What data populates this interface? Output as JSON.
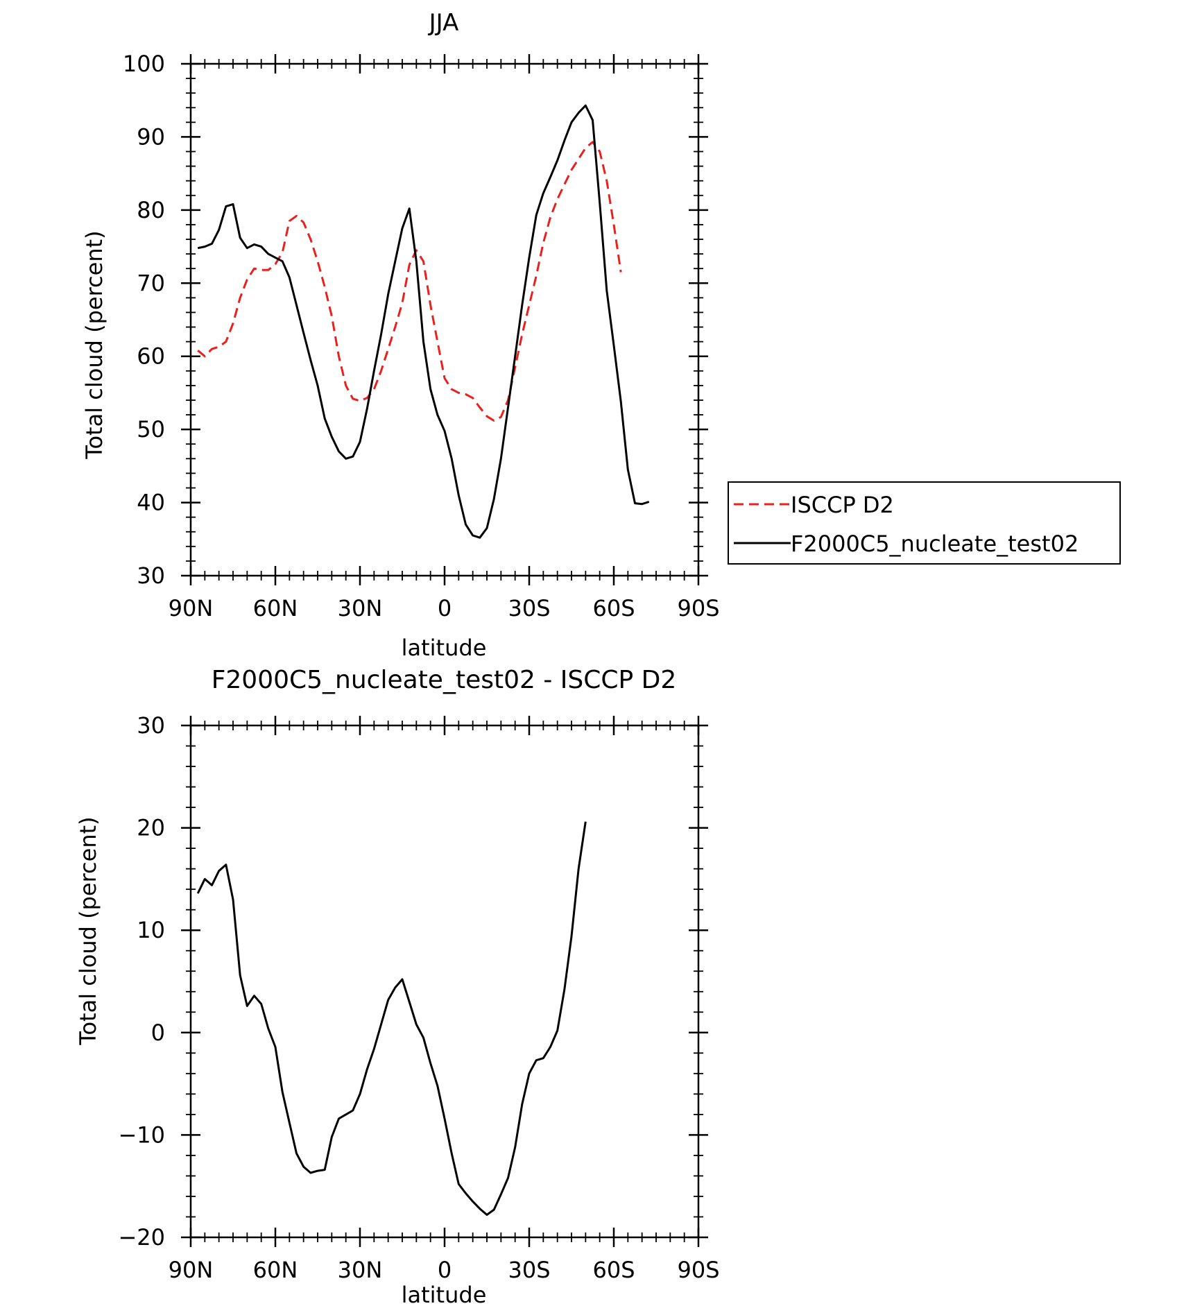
{
  "chart_data": [
    {
      "type": "line",
      "title": "JJA",
      "xlabel": "latitude",
      "ylabel": "Total cloud (percent)",
      "xlim": [
        90,
        -90
      ],
      "ylim": [
        30,
        100
      ],
      "x_ticks": [
        {
          "value": 90,
          "label": "90N"
        },
        {
          "value": 60,
          "label": "60N"
        },
        {
          "value": 30,
          "label": "30N"
        },
        {
          "value": 0,
          "label": "0"
        },
        {
          "value": -30,
          "label": "30S"
        },
        {
          "value": -60,
          "label": "60S"
        },
        {
          "value": -90,
          "label": "90S"
        }
      ],
      "y_ticks": [
        30,
        40,
        50,
        60,
        70,
        80,
        90,
        100
      ],
      "legend_position": "right",
      "series": [
        {
          "name": "ISCCP D2",
          "color": "#e8201e",
          "dash": "dashed",
          "points": [
            [
              87.5,
              60.8
            ],
            [
              85,
              60
            ],
            [
              82.5,
              61
            ],
            [
              80,
              61.3
            ],
            [
              77.5,
              62
            ],
            [
              75,
              64.5
            ],
            [
              72.5,
              68
            ],
            [
              70,
              70.5
            ],
            [
              67.5,
              72
            ],
            [
              65,
              71.8
            ],
            [
              62.5,
              71.8
            ],
            [
              60,
              72.6
            ],
            [
              57.5,
              74.2
            ],
            [
              55,
              78.5
            ],
            [
              52.5,
              79.2
            ],
            [
              50,
              78.3
            ],
            [
              47.5,
              76
            ],
            [
              45,
              73
            ],
            [
              42.5,
              69.5
            ],
            [
              40,
              65.5
            ],
            [
              37.5,
              60
            ],
            [
              35,
              56
            ],
            [
              32.5,
              54.2
            ],
            [
              30,
              53.9
            ],
            [
              27.5,
              54.3
            ],
            [
              25,
              55.5
            ],
            [
              22.5,
              58
            ],
            [
              20,
              61
            ],
            [
              17.5,
              64
            ],
            [
              15,
              67.3
            ],
            [
              12.5,
              72.5
            ],
            [
              10,
              74.5
            ],
            [
              7.5,
              73
            ],
            [
              5,
              67
            ],
            [
              2.5,
              62
            ],
            [
              0,
              57
            ],
            [
              -2.5,
              55.5
            ],
            [
              -5,
              55
            ],
            [
              -7.5,
              54.8
            ],
            [
              -10,
              54.3
            ],
            [
              -12.5,
              53
            ],
            [
              -15,
              51.8
            ],
            [
              -17.5,
              51.2
            ],
            [
              -20,
              51.7
            ],
            [
              -22.5,
              54
            ],
            [
              -25,
              58.5
            ],
            [
              -27.5,
              63
            ],
            [
              -30,
              67
            ],
            [
              -32.5,
              71
            ],
            [
              -35,
              75.5
            ],
            [
              -37.5,
              79
            ],
            [
              -40,
              81.5
            ],
            [
              -42.5,
              83.5
            ],
            [
              -45,
              85.5
            ],
            [
              -47.5,
              87
            ],
            [
              -50,
              88.5
            ],
            [
              -52.5,
              89.3
            ],
            [
              -55,
              88
            ],
            [
              -57.5,
              84
            ],
            [
              -60,
              78
            ],
            [
              -62.5,
              71.5
            ]
          ]
        },
        {
          "name": "F2000C5_nucleate_test02",
          "color": "#000000",
          "dash": "solid",
          "points": [
            [
              87.5,
              74.8
            ],
            [
              85,
              75
            ],
            [
              82.5,
              75.4
            ],
            [
              80,
              77.3
            ],
            [
              77.5,
              80.5
            ],
            [
              75,
              80.8
            ],
            [
              72.5,
              76.2
            ],
            [
              70,
              74.8
            ],
            [
              67.5,
              75.3
            ],
            [
              65,
              75
            ],
            [
              62.5,
              74
            ],
            [
              60,
              73.5
            ],
            [
              57.5,
              73
            ],
            [
              55,
              70.8
            ],
            [
              52.5,
              67
            ],
            [
              50,
              63.2
            ],
            [
              47.5,
              59.5
            ],
            [
              45,
              56
            ],
            [
              42.5,
              51.5
            ],
            [
              40,
              49
            ],
            [
              37.5,
              47
            ],
            [
              35,
              46
            ],
            [
              32.5,
              46.3
            ],
            [
              30,
              48.3
            ],
            [
              27.5,
              52.8
            ],
            [
              25,
              58
            ],
            [
              22.5,
              63
            ],
            [
              20,
              68.5
            ],
            [
              17.5,
              73
            ],
            [
              15,
              77.5
            ],
            [
              12.5,
              80.2
            ],
            [
              10,
              73
            ],
            [
              7.5,
              62
            ],
            [
              5,
              55.5
            ],
            [
              2.5,
              52
            ],
            [
              0,
              49.8
            ],
            [
              -2.5,
              46
            ],
            [
              -5,
              41
            ],
            [
              -7.5,
              37
            ],
            [
              -10,
              35.5
            ],
            [
              -12.5,
              35.2
            ],
            [
              -15,
              36.5
            ],
            [
              -17.5,
              40.5
            ],
            [
              -20,
              46
            ],
            [
              -22.5,
              53
            ],
            [
              -25,
              60
            ],
            [
              -27.5,
              67
            ],
            [
              -30,
              73.5
            ],
            [
              -32.5,
              79.3
            ],
            [
              -35,
              82.3
            ],
            [
              -37.5,
              84.5
            ],
            [
              -40,
              86.8
            ],
            [
              -42.5,
              89.5
            ],
            [
              -45,
              92
            ],
            [
              -47.5,
              93.3
            ],
            [
              -50,
              94.3
            ],
            [
              -52.5,
              92.3
            ],
            [
              -55,
              81
            ],
            [
              -57.5,
              69
            ],
            [
              -60,
              61.5
            ],
            [
              -62.5,
              53.8
            ],
            [
              -65,
              44.5
            ],
            [
              -67.5,
              39.9
            ],
            [
              -70,
              39.8
            ],
            [
              -72.5,
              40.1
            ]
          ]
        }
      ]
    },
    {
      "type": "line",
      "title": "F2000C5_nucleate_test02 - ISCCP D2",
      "xlabel": "latitude",
      "ylabel": "Total cloud (percent)",
      "xlim": [
        90,
        -90
      ],
      "ylim": [
        -20,
        30
      ],
      "x_ticks": [
        {
          "value": 90,
          "label": "90N"
        },
        {
          "value": 60,
          "label": "60N"
        },
        {
          "value": 30,
          "label": "30N"
        },
        {
          "value": 0,
          "label": "0"
        },
        {
          "value": -30,
          "label": "30S"
        },
        {
          "value": -60,
          "label": "60S"
        },
        {
          "value": -90,
          "label": "90S"
        }
      ],
      "y_ticks": [
        {
          "value": -20,
          "label": "−20"
        },
        {
          "value": -10,
          "label": "−10"
        },
        {
          "value": 0,
          "label": "0"
        },
        {
          "value": 10,
          "label": "10"
        },
        {
          "value": 20,
          "label": "20"
        },
        {
          "value": 30,
          "label": "30"
        }
      ],
      "series": [
        {
          "color": "#000000",
          "dash": "solid",
          "points": [
            [
              87.5,
              13.6
            ],
            [
              85,
              15
            ],
            [
              82.5,
              14.4
            ],
            [
              80,
              15.8
            ],
            [
              77.5,
              16.4
            ],
            [
              75,
              13
            ],
            [
              72.5,
              5.6
            ],
            [
              70,
              2.6
            ],
            [
              67.5,
              3.6
            ],
            [
              65,
              2.8
            ],
            [
              62.5,
              0.4
            ],
            [
              60,
              -1.4
            ],
            [
              57.5,
              -5.8
            ],
            [
              55,
              -8.8
            ],
            [
              52.5,
              -11.8
            ],
            [
              50,
              -13.1
            ],
            [
              47.5,
              -13.7
            ],
            [
              45,
              -13.5
            ],
            [
              42.5,
              -13.4
            ],
            [
              40,
              -10.2
            ],
            [
              37.5,
              -8.4
            ],
            [
              35,
              -8
            ],
            [
              32.5,
              -7.6
            ],
            [
              30,
              -6
            ],
            [
              27.5,
              -3.6
            ],
            [
              25,
              -1.6
            ],
            [
              22.5,
              0.8
            ],
            [
              20,
              3.2
            ],
            [
              17.5,
              4.4
            ],
            [
              15,
              5.2
            ],
            [
              12.5,
              3
            ],
            [
              10,
              0.8
            ],
            [
              7.5,
              -0.5
            ],
            [
              5,
              -3
            ],
            [
              2.5,
              -5.2
            ],
            [
              0,
              -8.4
            ],
            [
              -2.5,
              -11.8
            ],
            [
              -5,
              -14.8
            ],
            [
              -7.5,
              -15.7
            ],
            [
              -10,
              -16.5
            ],
            [
              -12.5,
              -17.2
            ],
            [
              -15,
              -17.8
            ],
            [
              -17.5,
              -17.3
            ],
            [
              -20,
              -15.8
            ],
            [
              -22.5,
              -14.2
            ],
            [
              -25,
              -11.2
            ],
            [
              -27.5,
              -7
            ],
            [
              -30,
              -4
            ],
            [
              -32.5,
              -2.7
            ],
            [
              -35,
              -2.5
            ],
            [
              -37.5,
              -1.4
            ],
            [
              -40,
              0.2
            ],
            [
              -42.5,
              4.2
            ],
            [
              -45,
              9.4
            ],
            [
              -47.5,
              16
            ],
            [
              -50,
              20.6
            ]
          ]
        }
      ]
    }
  ]
}
